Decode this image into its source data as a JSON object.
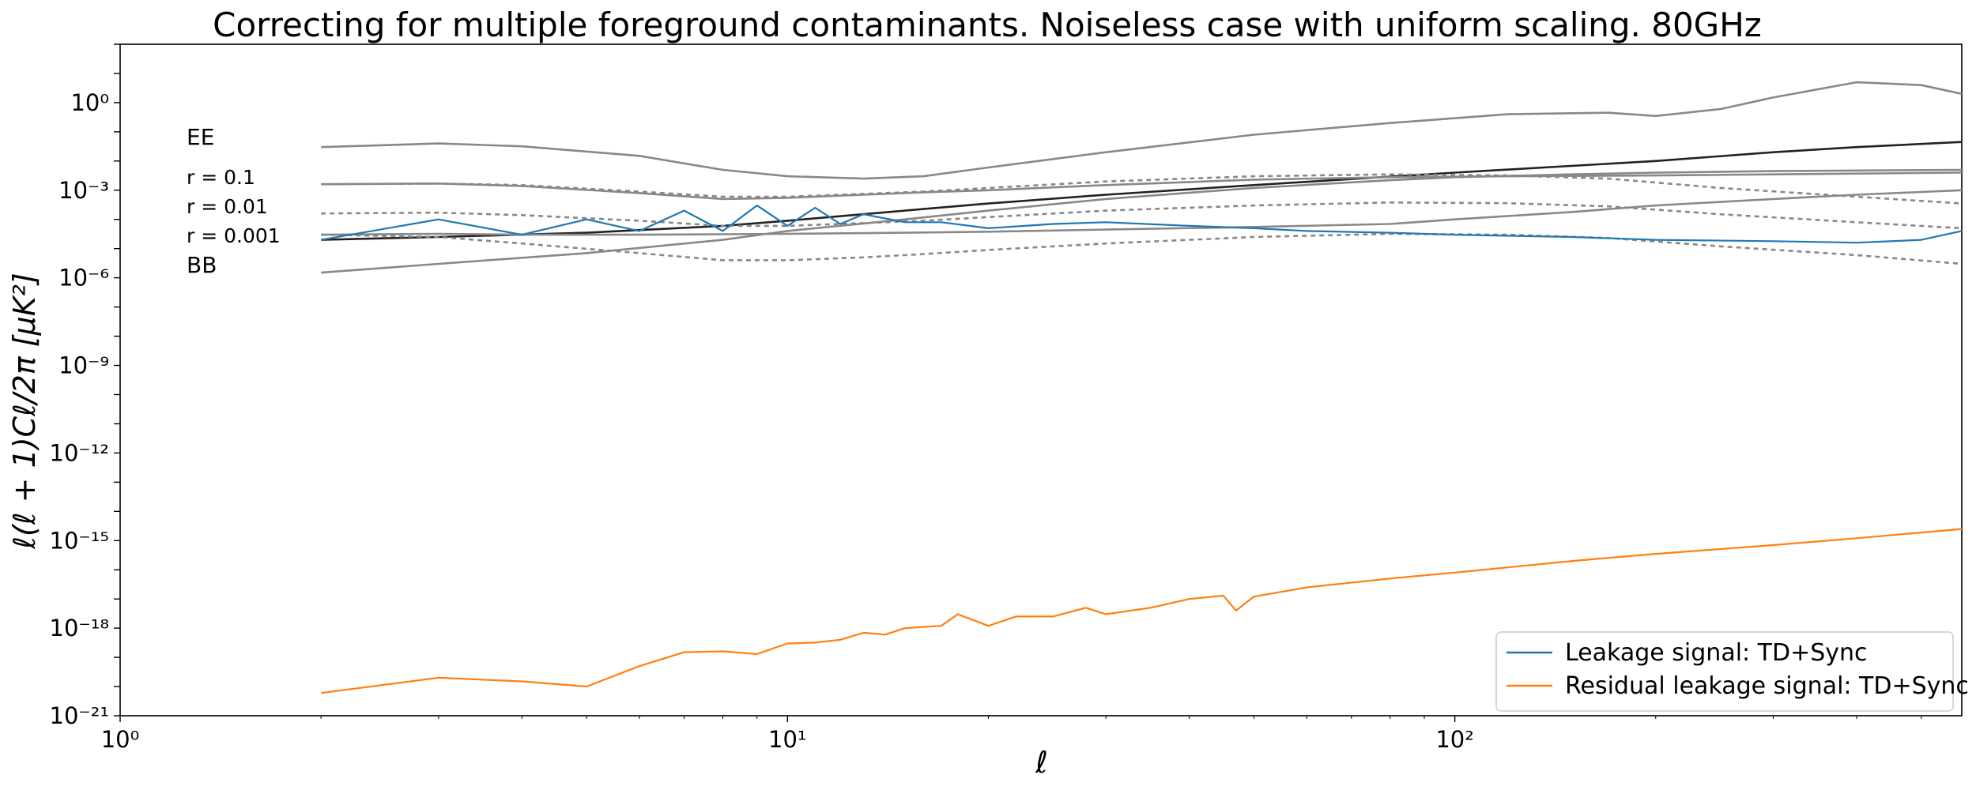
{
  "chart_data": {
    "type": "line",
    "title": "Correcting for multiple foreground contaminants. Noiseless case with uniform scaling. 80GHz",
    "xlabel": "ℓ",
    "ylabel": "ℓ(ℓ + 1)Cℓ/2π [μK²]",
    "xscale": "log",
    "yscale": "log",
    "xlim": [
      1,
      575
    ],
    "ylim": [
      1e-21,
      100.0
    ],
    "x_ticks": [
      {
        "value": 1,
        "label": "10⁰"
      },
      {
        "value": 10,
        "label": "10¹"
      },
      {
        "value": 100,
        "label": "10²"
      }
    ],
    "y_ticks": [
      {
        "value": 1e-21,
        "label": "10⁻²¹"
      },
      {
        "value": 1e-18,
        "label": "10⁻¹⁸"
      },
      {
        "value": 1e-15,
        "label": "10⁻¹⁵"
      },
      {
        "value": 1e-12,
        "label": "10⁻¹²"
      },
      {
        "value": 1e-09,
        "label": "10⁻⁹"
      },
      {
        "value": 1e-06,
        "label": "10⁻⁶"
      },
      {
        "value": 0.001,
        "label": "10⁻³"
      },
      {
        "value": 1,
        "label": "10⁰"
      }
    ],
    "annotations": {
      "ee": "EE",
      "r1": "r = 0.1",
      "r2": "r = 0.01",
      "r3": "r = 0.001",
      "bb": "BB"
    },
    "legend_position": "lower-right",
    "grid": false,
    "series": [
      {
        "name": "Leakage signal: TD+Sync",
        "color": "#1f77b4",
        "in_legend": true,
        "dash": "",
        "x": [
          2,
          3,
          4,
          5,
          6,
          7,
          8,
          9,
          10,
          11,
          12,
          13,
          15,
          17,
          20,
          25,
          30,
          40,
          50,
          60,
          80,
          100,
          150,
          200,
          300,
          400,
          500,
          575
        ],
        "y": [
          2e-05,
          0.0001,
          3e-05,
          0.0001,
          4e-05,
          0.0002,
          4e-05,
          0.0003,
          6e-05,
          0.00025,
          7e-05,
          0.00015,
          8e-05,
          8e-05,
          5e-05,
          7e-05,
          8e-05,
          6e-05,
          5e-05,
          4e-05,
          3.5e-05,
          3e-05,
          2.5e-05,
          2e-05,
          1.8e-05,
          1.6e-05,
          2e-05,
          4e-05
        ]
      },
      {
        "name": "Residual leakage signal: TD+Sync",
        "color": "#ff7f0e",
        "in_legend": true,
        "dash": "",
        "x": [
          2,
          3,
          4,
          5,
          6,
          7,
          8,
          9,
          10,
          11,
          12,
          13,
          14,
          15,
          17,
          18,
          20,
          22,
          25,
          28,
          30,
          35,
          40,
          45,
          47,
          50,
          60,
          80,
          100,
          150,
          200,
          300,
          400,
          575
        ],
        "y": [
          6e-21,
          2e-20,
          1.5e-20,
          1e-20,
          5e-20,
          1.5e-19,
          1.6e-19,
          1.3e-19,
          3e-19,
          3.2e-19,
          4e-19,
          7e-19,
          6e-19,
          1e-18,
          1.2e-18,
          3e-18,
          1.2e-18,
          2.5e-18,
          2.5e-18,
          5e-18,
          3e-18,
          5e-18,
          1e-17,
          1.3e-17,
          4e-18,
          1.2e-17,
          2.5e-17,
          5e-17,
          8e-17,
          2e-16,
          3.5e-16,
          7e-16,
          1.2e-15,
          2.5e-15
        ]
      },
      {
        "name": "",
        "color": "#888888",
        "in_legend": false,
        "dash": "",
        "x": [
          2,
          3,
          4,
          6,
          8,
          10,
          13,
          16,
          20,
          30,
          50,
          80,
          120,
          170,
          200,
          250,
          300,
          400,
          500,
          575
        ],
        "y": [
          0.03,
          0.04,
          0.032,
          0.015,
          0.005,
          0.003,
          0.0025,
          0.003,
          0.006,
          0.02,
          0.08,
          0.2,
          0.4,
          0.45,
          0.35,
          0.6,
          1.5,
          5,
          4,
          2
        ]
      },
      {
        "name": "",
        "color": "#222222",
        "in_legend": false,
        "dash": "",
        "x": [
          2,
          3,
          5,
          8,
          10,
          15,
          20,
          30,
          50,
          100,
          200,
          300,
          400,
          575
        ],
        "y": [
          2e-05,
          2.5e-05,
          3.5e-05,
          6e-05,
          9e-05,
          0.0002,
          0.00035,
          0.0007,
          0.0015,
          0.004,
          0.01,
          0.02,
          0.03,
          0.045
        ]
      },
      {
        "name": "",
        "color": "#888888",
        "in_legend": false,
        "dash": "",
        "x": [
          2,
          3,
          5,
          8,
          10,
          15,
          20,
          30,
          50,
          80,
          100,
          150,
          200,
          300,
          575
        ],
        "y": [
          1.5e-06,
          3e-06,
          7e-06,
          2e-05,
          4e-05,
          0.0001,
          0.0002,
          0.0005,
          0.0012,
          0.0022,
          0.0028,
          0.0035,
          0.004,
          0.0045,
          0.005
        ]
      },
      {
        "name": "",
        "color": "#888888",
        "in_legend": false,
        "dash": "",
        "x": [
          2,
          3,
          4,
          6,
          8,
          10,
          13,
          16,
          20,
          30,
          50,
          80,
          120,
          200,
          300,
          575
        ],
        "y": [
          0.0016,
          0.0017,
          0.0014,
          0.0008,
          0.0005,
          0.00055,
          0.0007,
          0.00085,
          0.001,
          0.0015,
          0.0023,
          0.0028,
          0.003,
          0.0032,
          0.0035,
          0.004
        ]
      },
      {
        "name": "",
        "color": "#888888",
        "in_legend": false,
        "dash": "",
        "x": [
          2,
          3,
          4,
          6,
          8,
          10,
          15,
          20,
          30,
          50,
          80,
          100,
          150,
          200,
          300,
          400,
          575
        ],
        "y": [
          3e-05,
          3.2e-05,
          3e-05,
          3e-05,
          3.1e-05,
          3.2e-05,
          3.5e-05,
          3.8e-05,
          4.5e-05,
          5.5e-05,
          7e-05,
          0.0001,
          0.00018,
          0.0003,
          0.0005,
          0.0007,
          0.001
        ]
      },
      {
        "name": "",
        "color": "#888888",
        "in_legend": false,
        "dash": "6,5",
        "x": [
          2,
          3,
          4,
          6,
          8,
          10,
          13,
          16,
          20,
          30,
          50,
          80,
          120,
          170,
          250,
          400,
          575
        ],
        "y": [
          0.0016,
          0.0017,
          0.0015,
          0.0009,
          0.0006,
          0.0006,
          0.00075,
          0.0009,
          0.0012,
          0.002,
          0.003,
          0.0035,
          0.0032,
          0.0025,
          0.0012,
          0.0006,
          0.00035
        ]
      },
      {
        "name": "",
        "color": "#888888",
        "in_legend": false,
        "dash": "6,5",
        "x": [
          2,
          3,
          4,
          6,
          8,
          10,
          13,
          16,
          20,
          30,
          50,
          80,
          120,
          170,
          250,
          400,
          575
        ],
        "y": [
          0.00016,
          0.00017,
          0.00014,
          9e-05,
          6e-05,
          6e-05,
          7.5e-05,
          9e-05,
          0.00012,
          0.0002,
          0.0003,
          0.00038,
          0.00036,
          0.00028,
          0.00015,
          8e-05,
          5e-05
        ]
      },
      {
        "name": "",
        "color": "#888888",
        "in_legend": false,
        "dash": "6,5",
        "x": [
          2,
          3,
          4,
          6,
          8,
          10,
          13,
          16,
          20,
          30,
          50,
          80,
          120,
          170,
          250,
          400,
          575
        ],
        "y": [
          3e-05,
          2.5e-05,
          1.5e-05,
          7e-06,
          4e-06,
          4e-06,
          5e-06,
          6.5e-06,
          9e-06,
          1.5e-05,
          2.5e-05,
          3.2e-05,
          3e-05,
          2.3e-05,
          1.2e-05,
          6e-06,
          3e-06
        ]
      }
    ]
  }
}
